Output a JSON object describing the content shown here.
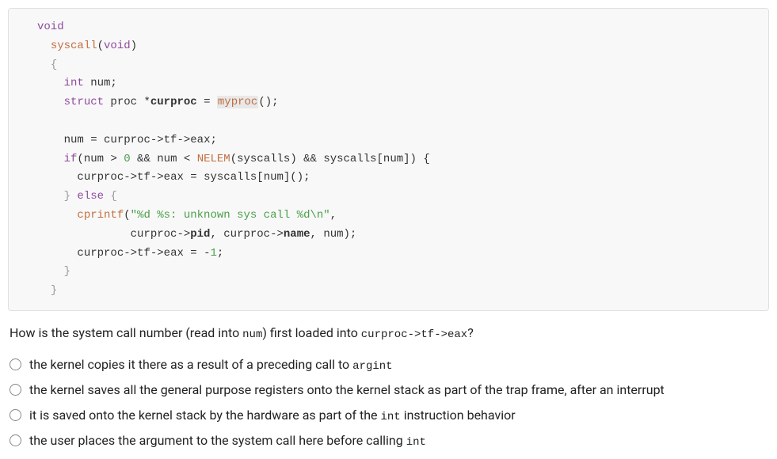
{
  "code": {
    "l1_kw": "void",
    "l2_fn": "syscall",
    "l2_rest": "(",
    "l2_void": "void",
    "l2_close": ")",
    "l3": "{",
    "l4_kw": "int",
    "l4_rest": " num;",
    "l5_kw": "struct",
    "l5_type": " proc ",
    "l5_star": "*",
    "l5_var": "curproc",
    "l5_eq": " = ",
    "l5_fn": "myproc",
    "l5_end": "();",
    "l6": "",
    "l7_a": "num ",
    "l7_eq": "= ",
    "l7_b": "curproc",
    "l7_c": "->",
    "l7_d": "tf",
    "l7_e": "->",
    "l7_f": "eax",
    "l7_g": ";",
    "l8_if": "if",
    "l8_a": "(num ",
    "l8_gt": ">",
    "l8_sp1": " ",
    "l8_zero": "0",
    "l8_and1": " && num ",
    "l8_lt": "<",
    "l8_sp2": " ",
    "l8_nelem": "NELEM",
    "l8_b": "(syscalls) && syscalls[num]) {",
    "l9_a": "curproc",
    "l9_b": "->",
    "l9_c": "tf",
    "l9_d": "->",
    "l9_e": "eax ",
    "l9_eq": "= ",
    "l9_f": "syscalls[num]();",
    "l10_a": "} ",
    "l10_else": "else",
    "l10_b": " {",
    "l11_fn": "cprintf",
    "l11_a": "(",
    "l11_str": "\"%d %s: unknown sys call %d\\n\"",
    "l11_b": ",",
    "l12_a": "curproc",
    "l12_b": "->",
    "l12_c": "pid",
    "l12_d": ", curproc",
    "l12_e": "->",
    "l12_f": "name",
    "l12_g": ", num);",
    "l13_a": "curproc",
    "l13_b": "->",
    "l13_c": "tf",
    "l13_d": "->",
    "l13_e": "eax ",
    "l13_eq": "= ",
    "l13_neg": "-",
    "l13_one": "1",
    "l13_f": ";",
    "l14": "}",
    "l15": "}"
  },
  "question": {
    "pre": "How is the system call number (read into ",
    "mono1": "num",
    "mid": ") first loaded into ",
    "mono2": "curproc->tf->eax",
    "post": "?"
  },
  "options": [
    {
      "pre": "the kernel copies it there as a result of a preceding call to ",
      "mono": "argint",
      "post": ""
    },
    {
      "pre": "the kernel saves all the general purpose registers onto the kernel stack as part of the trap frame, after an interrupt",
      "mono": "",
      "post": ""
    },
    {
      "pre": "it is saved onto the kernel stack by the hardware as part of the ",
      "mono": "int",
      "post": " instruction behavior"
    },
    {
      "pre": "the user places the argument to the system call here before calling ",
      "mono": "int",
      "post": ""
    }
  ],
  "colors": {
    "code_bg": "#f8f8f8",
    "kw": "#8f4a9e",
    "fn": "#c26e3f",
    "num": "#4a9e4a",
    "str": "#4a9e4a",
    "text": "#333333",
    "brace": "#999999"
  }
}
